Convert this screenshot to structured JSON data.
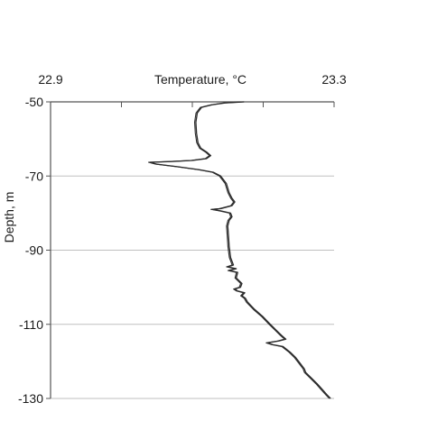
{
  "chart_data": {
    "type": "line",
    "title": "",
    "xlabel": "Temperature, °C",
    "ylabel": "Depth, m",
    "x_axis_position": "top",
    "xlim": [
      22.9,
      23.3
    ],
    "ylim": [
      -130,
      -50
    ],
    "x_tick_labels": [
      "22.9",
      "23.3"
    ],
    "x_minor_ticks": [
      23.0,
      23.1,
      23.2
    ],
    "y_ticks": [
      -50,
      -70,
      -90,
      -110,
      -130
    ],
    "y_tick_labels": [
      "-50",
      "-70",
      "-90",
      "-110",
      "-130"
    ],
    "grid": "horizontal",
    "legend": "none",
    "colors": {
      "line": "#2b2b2b",
      "axis": "#555555",
      "grid": "#bfbfbf"
    },
    "series": [
      {
        "points": [
          [
            23.173,
            -50.0
          ],
          [
            23.146,
            -50.3
          ],
          [
            23.128,
            -50.8
          ],
          [
            23.113,
            -51.5
          ],
          [
            23.107,
            -53.0
          ],
          [
            23.105,
            -55.5
          ],
          [
            23.106,
            -58.5
          ],
          [
            23.108,
            -61.0
          ],
          [
            23.112,
            -62.5
          ],
          [
            23.12,
            -63.5
          ],
          [
            23.126,
            -64.5
          ],
          [
            23.12,
            -65.3
          ],
          [
            23.1,
            -65.8
          ],
          [
            23.07,
            -66.1
          ],
          [
            23.04,
            -66.3
          ],
          [
            23.05,
            -66.8
          ],
          [
            23.08,
            -67.5
          ],
          [
            23.11,
            -68.3
          ],
          [
            23.13,
            -69.0
          ],
          [
            23.14,
            -70.0
          ],
          [
            23.148,
            -72.0
          ],
          [
            23.152,
            -74.5
          ],
          [
            23.156,
            -76.0
          ],
          [
            23.16,
            -77.0
          ],
          [
            23.156,
            -78.0
          ],
          [
            23.14,
            -78.8
          ],
          [
            23.128,
            -79.0
          ],
          [
            23.14,
            -79.4
          ],
          [
            23.154,
            -80.0
          ],
          [
            23.156,
            -81.0
          ],
          [
            23.152,
            -82.0
          ],
          [
            23.15,
            -83.5
          ],
          [
            23.151,
            -86.0
          ],
          [
            23.152,
            -89.0
          ],
          [
            23.154,
            -92.0
          ],
          [
            23.158,
            -94.0
          ],
          [
            23.15,
            -94.5
          ],
          [
            23.162,
            -95.0
          ],
          [
            23.152,
            -95.5
          ],
          [
            23.164,
            -96.0
          ],
          [
            23.162,
            -97.5
          ],
          [
            23.17,
            -99.0
          ],
          [
            23.168,
            -100.0
          ],
          [
            23.16,
            -100.5
          ],
          [
            23.164,
            -101.0
          ],
          [
            23.174,
            -101.5
          ],
          [
            23.17,
            -102.3
          ],
          [
            23.175,
            -103.0
          ],
          [
            23.178,
            -104.0
          ],
          [
            23.188,
            -106.0
          ],
          [
            23.2,
            -108.0
          ],
          [
            23.21,
            -110.0
          ],
          [
            23.218,
            -111.5
          ],
          [
            23.226,
            -113.0
          ],
          [
            23.232,
            -114.0
          ],
          [
            23.222,
            -114.5
          ],
          [
            23.206,
            -115.0
          ],
          [
            23.214,
            -115.5
          ],
          [
            23.228,
            -116.0
          ],
          [
            23.238,
            -117.5
          ],
          [
            23.246,
            -119.0
          ],
          [
            23.252,
            -120.5
          ],
          [
            23.258,
            -122.0
          ],
          [
            23.26,
            -123.0
          ],
          [
            23.268,
            -124.5
          ],
          [
            23.276,
            -126.0
          ],
          [
            23.283,
            -127.5
          ],
          [
            23.29,
            -129.0
          ],
          [
            23.295,
            -130.0
          ]
        ]
      }
    ]
  }
}
